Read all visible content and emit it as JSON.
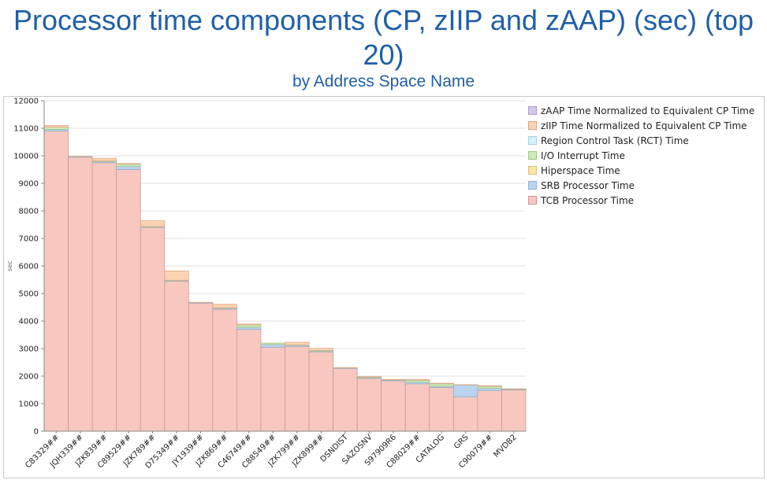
{
  "chart_data": {
    "type": "bar",
    "stacked": true,
    "title": "Processor time components (CP, zIIP and zAAP) (sec) (top 20)",
    "subtitle": "by Address Space Name",
    "ylabel": "sec",
    "ylim": [
      0,
      12000
    ],
    "yticks": [
      0,
      1000,
      2000,
      3000,
      4000,
      5000,
      6000,
      7000,
      8000,
      9000,
      10000,
      11000,
      12000
    ],
    "grid": true,
    "legend_position": "right",
    "categories": [
      "C83329##",
      "JQH339##",
      "JZK839##",
      "C89529##",
      "JZK789##",
      "D75349##",
      "JY1939##",
      "JZK869##",
      "C46749##",
      "C88549##",
      "JZK799##",
      "JZK899##",
      "DSNDIST",
      "SAZOSNV",
      "S97909R6",
      "C88029##",
      "CATALOG",
      "GRS",
      "C90079##",
      "MVDB2"
    ],
    "series": [
      {
        "name": "TCB Processor Time",
        "color": "#f8c8c0",
        "edge": "#c99b94",
        "values": [
          10900,
          9950,
          9750,
          9500,
          7400,
          5450,
          4650,
          4430,
          3700,
          3050,
          3080,
          2880,
          2280,
          1920,
          1830,
          1720,
          1590,
          1250,
          1480,
          1500
        ]
      },
      {
        "name": "SRB Processor Time",
        "color": "#b8d4ee",
        "edge": "#8fb0d0",
        "values": [
          60,
          20,
          40,
          120,
          20,
          20,
          20,
          30,
          80,
          100,
          40,
          30,
          20,
          20,
          30,
          60,
          40,
          430,
          80,
          20
        ]
      },
      {
        "name": "Hiperspace Time",
        "color": "#fbe5a8",
        "edge": "#d9c27e",
        "values": [
          0,
          0,
          0,
          0,
          0,
          0,
          0,
          0,
          0,
          0,
          0,
          0,
          0,
          0,
          0,
          0,
          0,
          0,
          0,
          0
        ]
      },
      {
        "name": "I/O Interrupt Time",
        "color": "#cdebb8",
        "edge": "#a2c98c",
        "values": [
          80,
          0,
          20,
          80,
          10,
          10,
          0,
          20,
          80,
          50,
          10,
          20,
          0,
          20,
          10,
          70,
          90,
          0,
          70,
          10
        ]
      },
      {
        "name": "Region Control Task (RCT) Time",
        "color": "#d6f0fb",
        "edge": "#a8cfdf",
        "values": [
          0,
          0,
          0,
          0,
          0,
          0,
          0,
          0,
          0,
          0,
          0,
          0,
          0,
          0,
          0,
          0,
          0,
          0,
          0,
          0
        ]
      },
      {
        "name": "zIIP Time Normalized to Equivalent CP Time",
        "color": "#fbd3b3",
        "edge": "#d9a886",
        "values": [
          60,
          10,
          100,
          20,
          210,
          340,
          10,
          130,
          30,
          0,
          100,
          80,
          10,
          20,
          10,
          30,
          20,
          10,
          20,
          10
        ]
      },
      {
        "name": "zAAP Time Normalized to Equivalent CP Time",
        "color": "#d4c8ea",
        "edge": "#a89bc6",
        "values": [
          0,
          0,
          0,
          0,
          0,
          0,
          0,
          0,
          0,
          0,
          0,
          0,
          0,
          0,
          0,
          0,
          0,
          0,
          0,
          0
        ]
      }
    ]
  }
}
